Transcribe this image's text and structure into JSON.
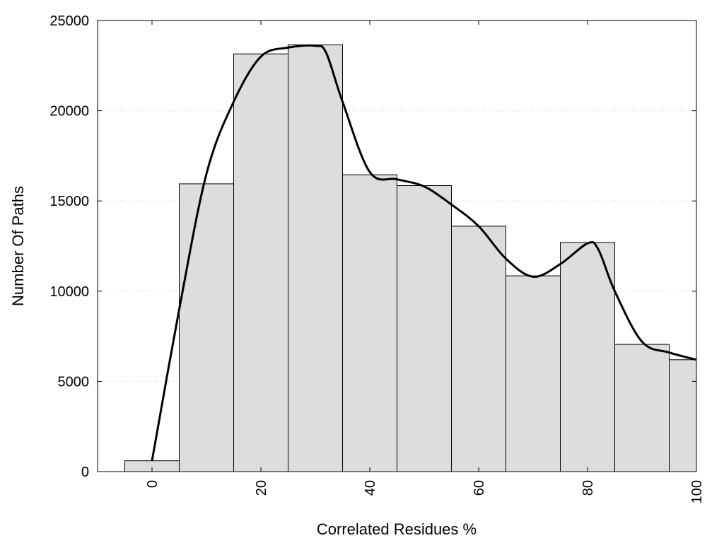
{
  "chart_data": {
    "type": "bar",
    "title": "",
    "xlabel": "Correlated Residues %",
    "ylabel": "Number Of Paths",
    "xlim": [
      -10,
      100
    ],
    "ylim": [
      0,
      25000
    ],
    "grid": "horizontal dotted",
    "bar_color": "#dddddd",
    "x_ticks": [
      0,
      20,
      40,
      60,
      80,
      100
    ],
    "x_tick_labels": [
      "0",
      "20",
      "40",
      "60",
      "80",
      "100"
    ],
    "y_ticks": [
      0,
      5000,
      10000,
      15000,
      20000,
      25000
    ],
    "y_tick_labels": [
      "0",
      "5000",
      "10000",
      "15000",
      "20000",
      "25000"
    ],
    "bins": [
      {
        "x_start": -5,
        "x_end": 5,
        "value": 600
      },
      {
        "x_start": 5,
        "x_end": 15,
        "value": 15950
      },
      {
        "x_start": 15,
        "x_end": 25,
        "value": 23150
      },
      {
        "x_start": 25,
        "x_end": 35,
        "value": 23650
      },
      {
        "x_start": 35,
        "x_end": 45,
        "value": 16450
      },
      {
        "x_start": 45,
        "x_end": 55,
        "value": 15850
      },
      {
        "x_start": 55,
        "x_end": 65,
        "value": 13600
      },
      {
        "x_start": 65,
        "x_end": 75,
        "value": 10850
      },
      {
        "x_start": 75,
        "x_end": 85,
        "value": 12700
      },
      {
        "x_start": 85,
        "x_end": 95,
        "value": 7050
      },
      {
        "x_start": 95,
        "x_end": 100,
        "value": 6200
      }
    ],
    "curve": {
      "type": "line",
      "x": [
        0,
        5,
        10,
        15,
        20,
        25,
        30,
        32,
        35,
        40,
        45,
        50,
        55,
        60,
        65,
        70,
        75,
        80,
        82,
        85,
        90,
        95,
        100
      ],
      "y": [
        600,
        9000,
        16500,
        20500,
        23000,
        23500,
        23600,
        23200,
        20500,
        16600,
        16200,
        15800,
        14800,
        13600,
        11800,
        10800,
        11500,
        12650,
        12300,
        10000,
        7200,
        6600,
        6200
      ]
    }
  }
}
